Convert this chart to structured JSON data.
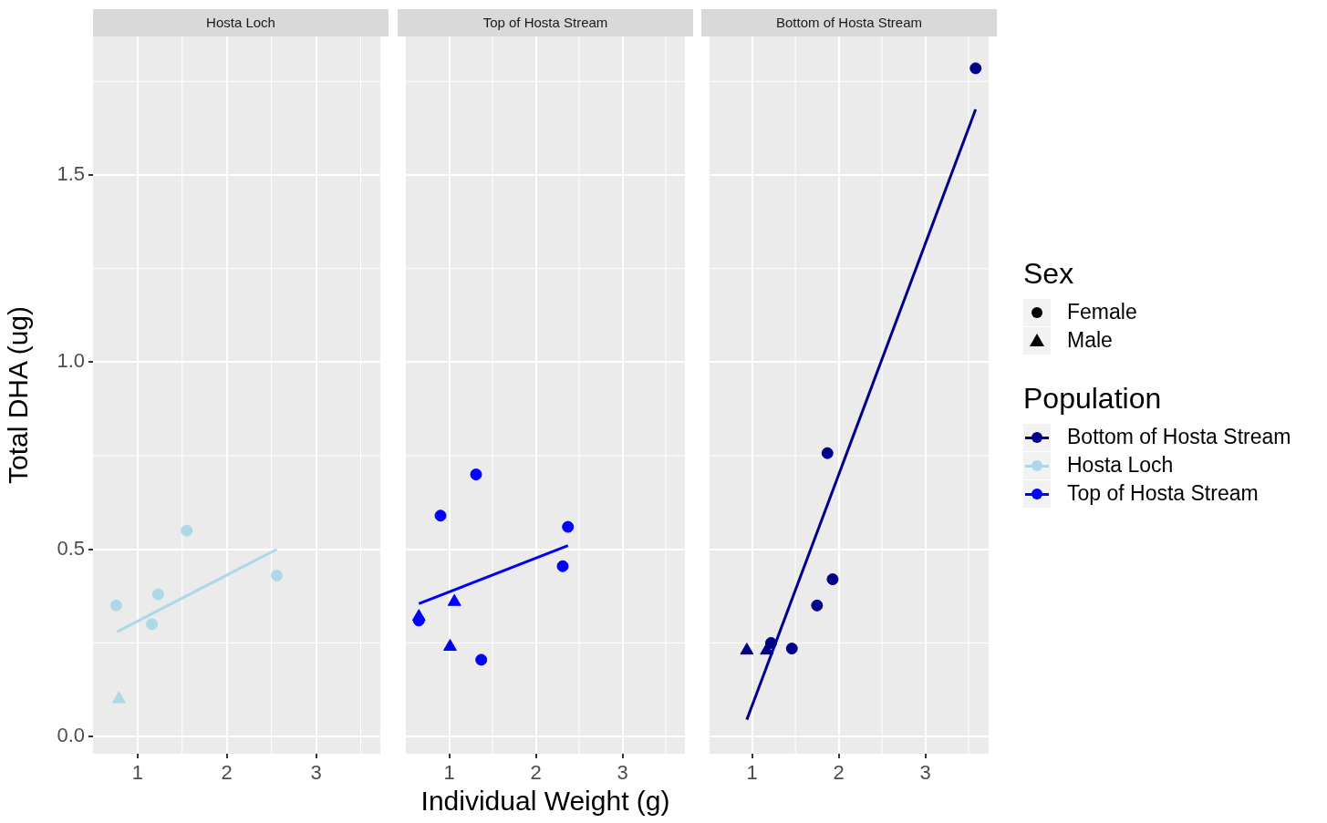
{
  "chart_data": [
    {
      "type": "scatter",
      "title": "Hosta Loch",
      "ylabel": "Total DHA (ug)",
      "annotations": [
        "Sex",
        "Female",
        "Male"
      ],
      "xlim": [
        0.5,
        3.72
      ],
      "xticks": [
        1,
        2,
        3
      ],
      "ylim": [
        -0.046,
        1.87
      ],
      "yticks": [
        {
          "value": 0,
          "label": "0.0"
        },
        1.5,
        {
          "value": 1,
          "label": "1.0"
        },
        0.5
      ],
      "grid": true,
      "series": [
        {
          "marker": "circle",
          "color": "#add8e6",
          "x": [
            0.76,
            1.23,
            1.55,
            1.16,
            2.56
          ],
          "values": [
            0.35,
            0.38,
            0.55,
            0.3,
            0.43
          ]
        },
        {
          "marker": "triangle",
          "color": "#add8e6",
          "x": [
            0.79
          ],
          "values": [
            0.1
          ]
        },
        {
          "name": "Hosta Loch",
          "type": "line",
          "color": "#add8e6",
          "x": [
            0.77,
            2.56
          ],
          "values": [
            0.28,
            0.5
          ]
        }
      ]
    },
    {
      "type": "scatter",
      "title": "Top of Hosta Stream",
      "xlabel": "Individual Weight (g)",
      "tick_labels": "x",
      "xlim": [
        0.5,
        3.72
      ],
      "xticks": [
        1,
        2,
        3
      ],
      "ylim": [
        -0.046,
        1.87
      ],
      "yticks": [
        0,
        0.5,
        1,
        1.5
      ],
      "grid": true,
      "series": [
        {
          "marker": "circle",
          "color": "#0000ff",
          "x": [
            0.9,
            1.31,
            2.37,
            2.31,
            1.37,
            0.65
          ],
          "values": [
            0.59,
            0.7,
            0.56,
            0.455,
            0.205,
            0.31
          ]
        },
        {
          "marker": "triangle",
          "color": "#0000ff",
          "x": [
            0.65,
            1.01,
            1.06
          ],
          "values": [
            0.32,
            0.24,
            0.36
          ]
        },
        {
          "name": "Top of Hosta Stream",
          "type": "line",
          "color": "#0000ff",
          "x": [
            0.65,
            2.37
          ],
          "values": [
            0.355,
            0.51
          ]
        }
      ]
    },
    {
      "type": "scatter",
      "title": "Bottom of Hosta Stream",
      "legend_title": "Population",
      "legend": "right",
      "tick_labels": "x",
      "xlim": [
        0.51,
        3.73
      ],
      "xticks": [
        1,
        2,
        3
      ],
      "ylim": [
        -0.046,
        1.87
      ],
      "yticks": [
        0,
        0.5,
        1,
        1.5
      ],
      "grid": true,
      "series": [
        {
          "marker": "circle",
          "color": "#00008b",
          "x": [
            3.58,
            1.87,
            1.93,
            1.75,
            1.46,
            1.22
          ],
          "values": [
            1.785,
            0.757,
            0.42,
            0.35,
            0.235,
            0.25
          ]
        },
        {
          "marker": "triangle",
          "color": "#00008b",
          "x": [
            0.94,
            1.17
          ],
          "values": [
            0.23,
            0.23
          ]
        },
        {
          "name": "Bottom of Hosta Stream",
          "type": "line",
          "color": "#00008b",
          "x": [
            0.94,
            3.58
          ],
          "values": [
            0.045,
            1.675
          ]
        }
      ]
    }
  ]
}
